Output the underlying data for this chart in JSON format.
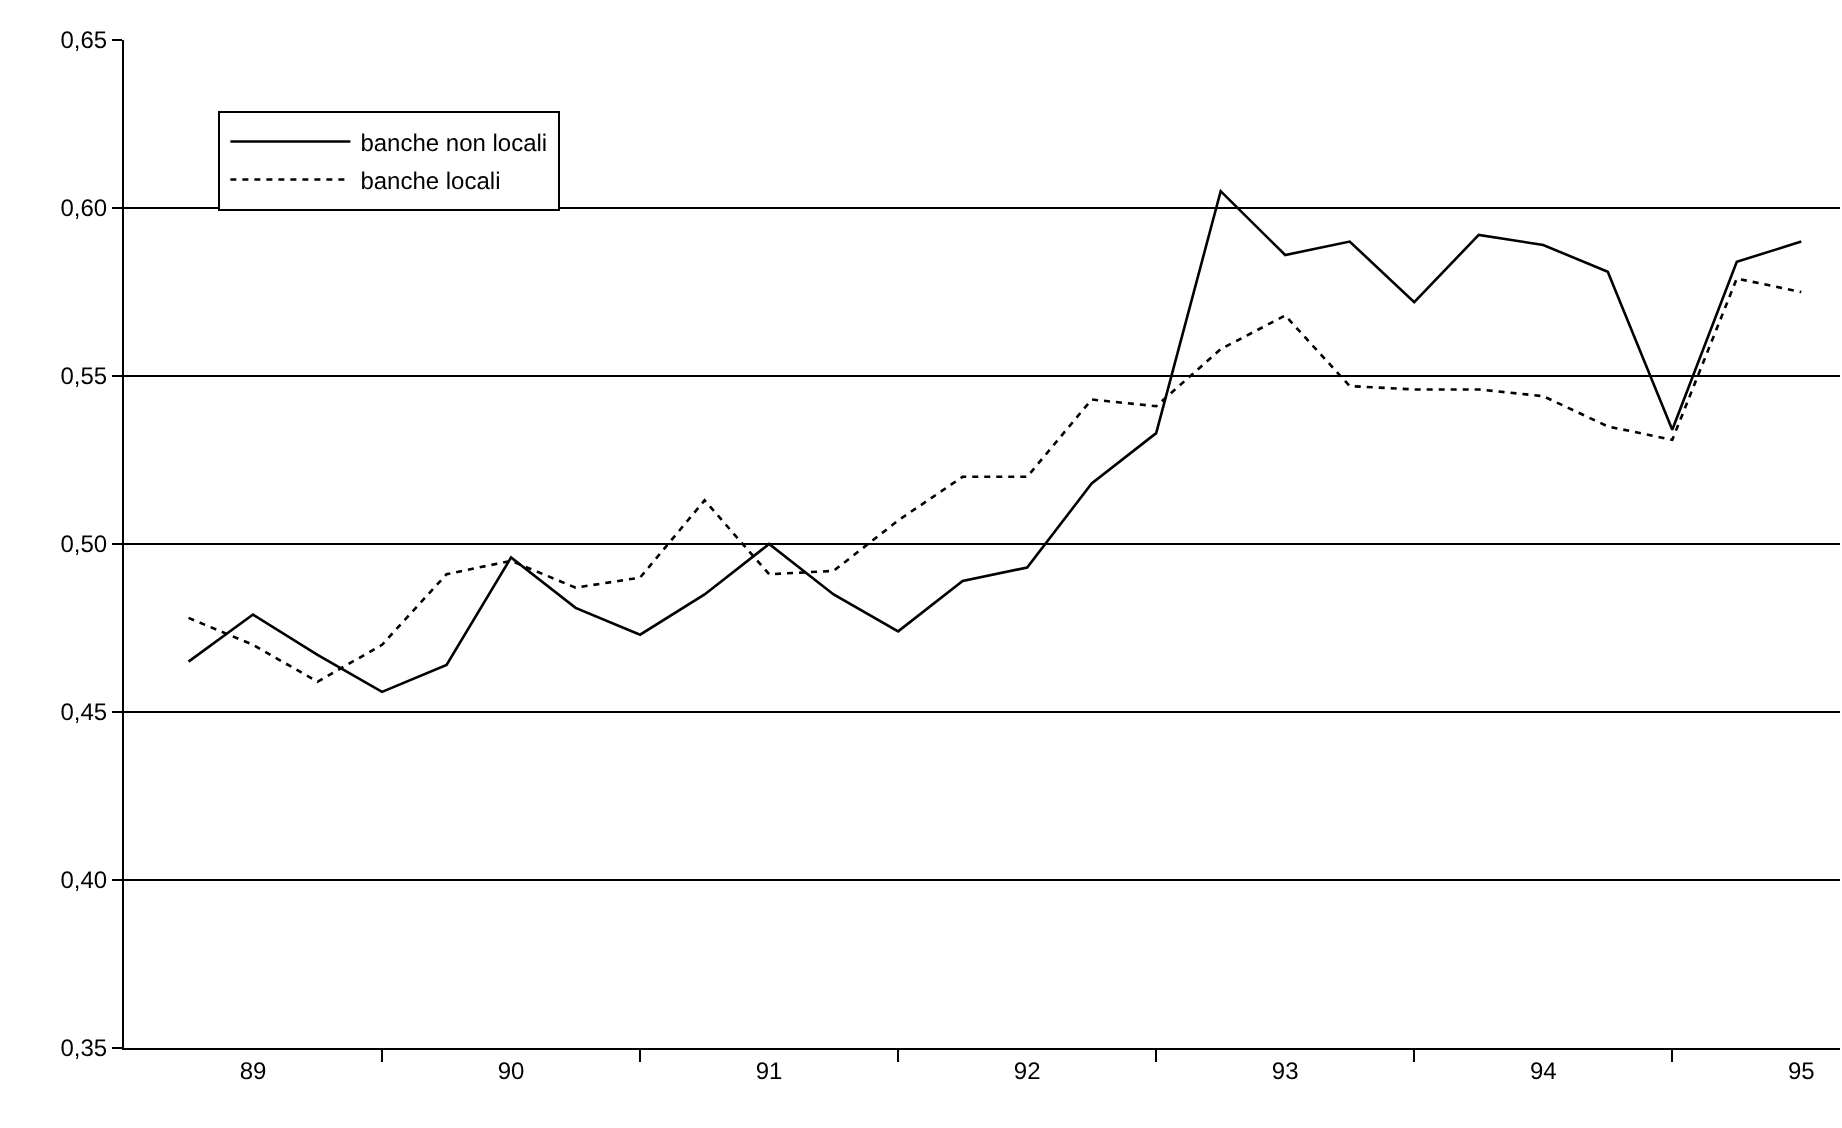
{
  "chart_data": {
    "type": "line",
    "categories": [
      null,
      "89",
      null,
      null,
      null,
      "90",
      null,
      null,
      null,
      "91",
      null,
      null,
      null,
      "92",
      null,
      null,
      null,
      "93",
      null,
      null,
      null,
      "94",
      null,
      null,
      null,
      "95"
    ],
    "series": [
      {
        "name": "banche non locali",
        "color": "#000000",
        "line_style": "solid",
        "values": [
          0.465,
          0.479,
          0.467,
          0.456,
          0.464,
          0.496,
          0.481,
          0.473,
          0.485,
          0.5,
          0.485,
          0.474,
          0.489,
          0.493,
          0.518,
          0.533,
          0.605,
          0.586,
          0.59,
          0.572,
          0.592,
          0.589,
          0.581,
          0.534,
          0.584,
          0.59
        ]
      },
      {
        "name": "banche locali",
        "color": "#000000",
        "line_style": "dotted",
        "values": [
          0.478,
          0.47,
          0.459,
          0.47,
          0.491,
          0.495,
          0.487,
          0.49,
          0.513,
          0.491,
          0.492,
          0.507,
          0.52,
          0.52,
          0.543,
          0.541,
          0.558,
          0.568,
          0.547,
          0.546,
          0.546,
          0.544,
          0.535,
          0.531,
          0.579,
          0.575
        ]
      }
    ],
    "ylim": [
      0.35,
      0.65
    ],
    "yticks": [
      {
        "value": 0.35,
        "label": "0,35"
      },
      {
        "value": 0.4,
        "label": "0,40"
      },
      {
        "value": 0.45,
        "label": "0,45"
      },
      {
        "value": 0.5,
        "label": "0,50"
      },
      {
        "value": 0.55,
        "label": "0,55"
      },
      {
        "value": 0.6,
        "label": "0,60"
      },
      {
        "value": 0.65,
        "label": "0,65"
      }
    ],
    "grid": "y",
    "legend": "top left",
    "marker": "none"
  }
}
